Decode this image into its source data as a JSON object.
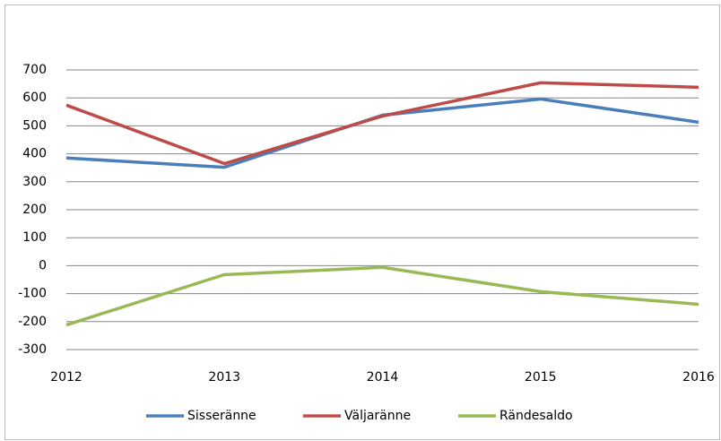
{
  "chart_data": {
    "type": "line",
    "categories": [
      "2012",
      "2013",
      "2014",
      "2015",
      "2016"
    ],
    "series": [
      {
        "name": "Sisseränne",
        "color": "#4a7ebb",
        "values": [
          385,
          352,
          538,
          596,
          513
        ]
      },
      {
        "name": "Väljaränne",
        "color": "#be4b48",
        "values": [
          574,
          365,
          535,
          654,
          638
        ]
      },
      {
        "name": "Rändesaldo",
        "color": "#98b954",
        "values": [
          -212,
          -32,
          -6,
          -93,
          -138
        ]
      }
    ],
    "ylim": [
      -300,
      700
    ],
    "yticks": [
      -300,
      -200,
      -100,
      0,
      100,
      200,
      300,
      400,
      500,
      600,
      700
    ],
    "grid": true,
    "legend": "bottom"
  }
}
